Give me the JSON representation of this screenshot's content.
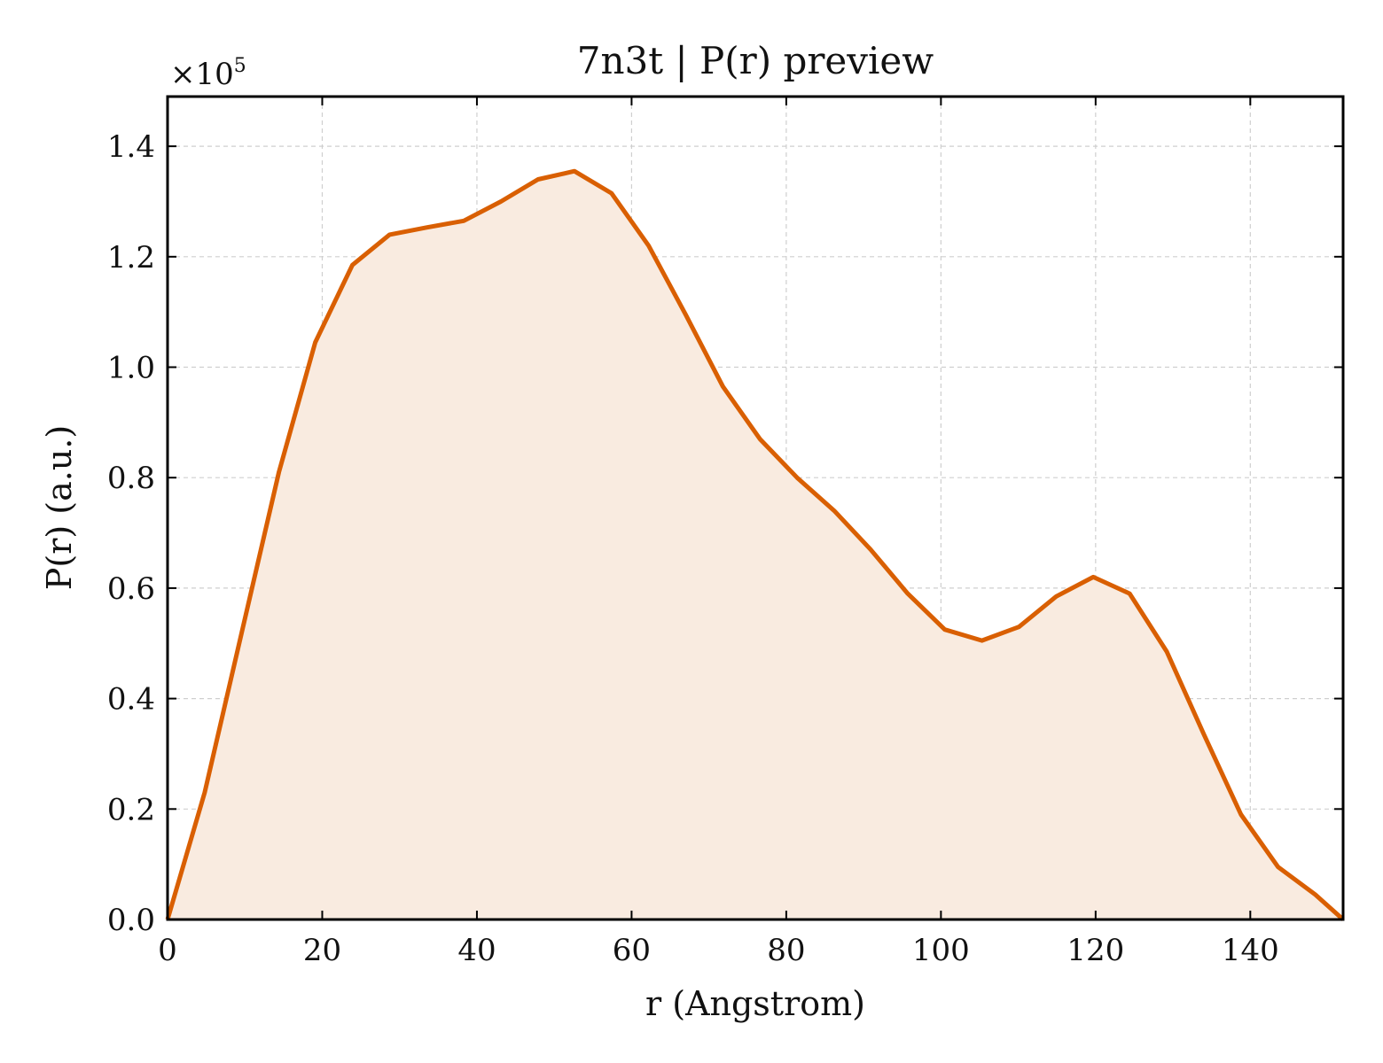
{
  "chart_data": {
    "type": "area",
    "title": "7n3t | P(r) preview",
    "xlabel": "r (Angstrom)",
    "ylabel": "P(r) (a.u.)",
    "y_multiplier_prefix": "×10",
    "y_multiplier_exponent": "5",
    "xlim": [
      0,
      152
    ],
    "ylim": [
      0,
      1.49
    ],
    "x_ticks": [
      0,
      20,
      40,
      60,
      80,
      100,
      120,
      140
    ],
    "x_tick_labels": [
      "0",
      "20",
      "40",
      "60",
      "80",
      "100",
      "120",
      "140"
    ],
    "y_ticks": [
      0,
      0.2,
      0.4,
      0.6,
      0.8,
      1.0,
      1.2,
      1.4
    ],
    "y_tick_labels": [
      "0.0",
      "0.2",
      "0.4",
      "0.6",
      "0.8",
      "1.0",
      "1.2",
      "1.4"
    ],
    "grid": true,
    "line_color": "#d95f02",
    "fill_color": "#f9ebe0",
    "series": [
      {
        "x": [
          0,
          4.8,
          9.6,
          14.4,
          19.1,
          23.9,
          28.7,
          33.5,
          38.3,
          43.1,
          47.9,
          52.6,
          57.4,
          62.2,
          67.0,
          71.8,
          76.6,
          81.4,
          86.2,
          90.9,
          95.7,
          100.5,
          105.3,
          110.1,
          114.9,
          119.7,
          124.4,
          129.2,
          134.0,
          138.8,
          143.6,
          148.4,
          152
        ],
        "y": [
          0.0,
          0.23,
          0.52,
          0.81,
          1.045,
          1.185,
          1.24,
          1.253,
          1.265,
          1.3,
          1.34,
          1.355,
          1.315,
          1.22,
          1.095,
          0.965,
          0.87,
          0.8,
          0.74,
          0.67,
          0.59,
          0.525,
          0.505,
          0.53,
          0.585,
          0.62,
          0.59,
          0.485,
          0.335,
          0.19,
          0.095,
          0.045,
          0.0
        ]
      }
    ]
  }
}
